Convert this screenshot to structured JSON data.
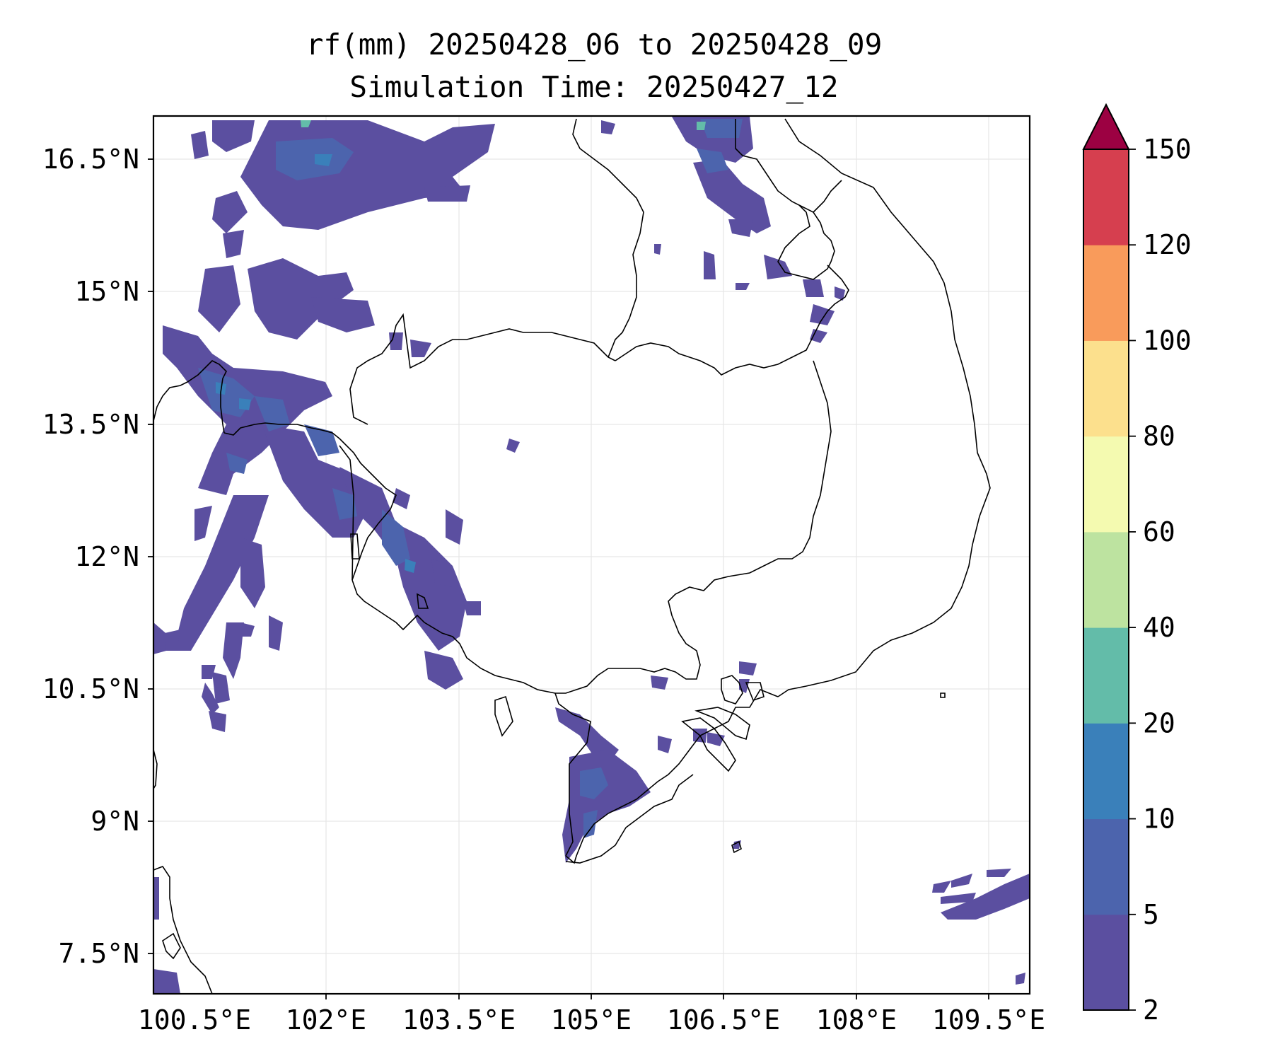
{
  "title_line1": "rf(mm) 20250428_06 to 20250428_09",
  "title_line2": "Simulation Time: 20250427_12",
  "lon_ticks": [
    "100.5°E",
    "102°E",
    "103.5°E",
    "105°E",
    "106.5°E",
    "108°E",
    "109.5°E"
  ],
  "lat_ticks": [
    "16.5°N",
    "15°N",
    "13.5°N",
    "12°N",
    "10.5°N",
    "9°N",
    "7.5°N"
  ],
  "colorbar": {
    "levels": [
      "2",
      "5",
      "10",
      "20",
      "40",
      "60",
      "80",
      "100",
      "120",
      "150"
    ],
    "colors": [
      "#5b4fa0",
      "#4c64ad",
      "#3a80ba",
      "#63bca9",
      "#bde3a0",
      "#f4fab0",
      "#fce08d",
      "#f99b5b",
      "#d63f4f",
      "#9c0142"
    ],
    "extend": "max"
  }
}
